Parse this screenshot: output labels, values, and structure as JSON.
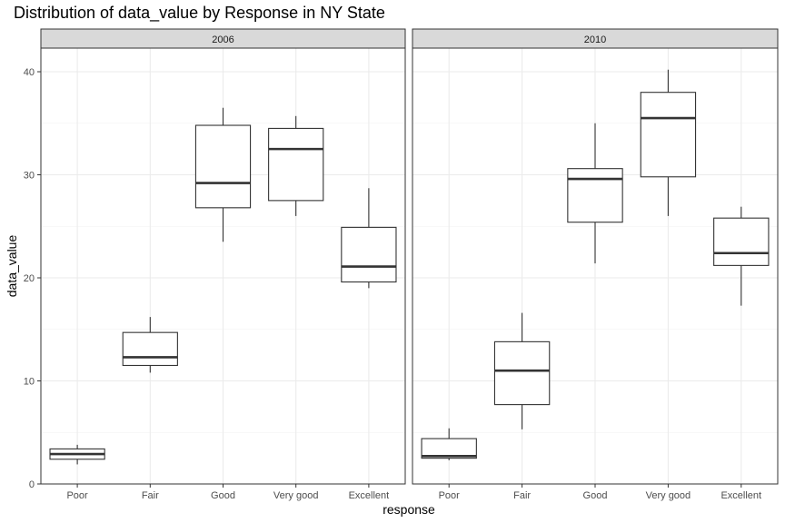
{
  "chart_data": {
    "type": "boxplot",
    "title": "Distribution of data_value by Response in NY State",
    "xlabel": "response",
    "ylabel": "data_value",
    "ylim": [
      0,
      42
    ],
    "yticks": [
      0,
      10,
      20,
      30,
      40
    ],
    "grid": true,
    "categories": [
      "Poor",
      "Fair",
      "Good",
      "Very good",
      "Excellent"
    ],
    "facets": [
      {
        "label": "2006",
        "boxes": [
          {
            "category": "Poor",
            "min": 1.9,
            "q1": 2.4,
            "median": 2.9,
            "q3": 3.4,
            "max": 3.8
          },
          {
            "category": "Fair",
            "min": 10.8,
            "q1": 11.5,
            "median": 12.3,
            "q3": 14.7,
            "max": 16.2
          },
          {
            "category": "Good",
            "min": 23.5,
            "q1": 26.8,
            "median": 29.2,
            "q3": 34.8,
            "max": 36.5
          },
          {
            "category": "Very good",
            "min": 26.0,
            "q1": 27.5,
            "median": 32.5,
            "q3": 34.5,
            "max": 35.7
          },
          {
            "category": "Excellent",
            "min": 19.0,
            "q1": 19.6,
            "median": 21.1,
            "q3": 24.9,
            "max": 28.7
          }
        ]
      },
      {
        "label": "2010",
        "boxes": [
          {
            "category": "Poor",
            "min": 2.3,
            "q1": 2.5,
            "median": 2.7,
            "q3": 4.4,
            "max": 5.4
          },
          {
            "category": "Fair",
            "min": 5.3,
            "q1": 7.7,
            "median": 11.0,
            "q3": 13.8,
            "max": 16.6
          },
          {
            "category": "Good",
            "min": 21.4,
            "q1": 25.4,
            "median": 29.6,
            "q3": 30.6,
            "max": 35.0
          },
          {
            "category": "Very good",
            "min": 26.0,
            "q1": 29.8,
            "median": 35.5,
            "q3": 38.0,
            "max": 40.2
          },
          {
            "category": "Excellent",
            "min": 17.3,
            "q1": 21.2,
            "median": 22.4,
            "q3": 25.8,
            "max": 26.9
          }
        ]
      }
    ]
  }
}
